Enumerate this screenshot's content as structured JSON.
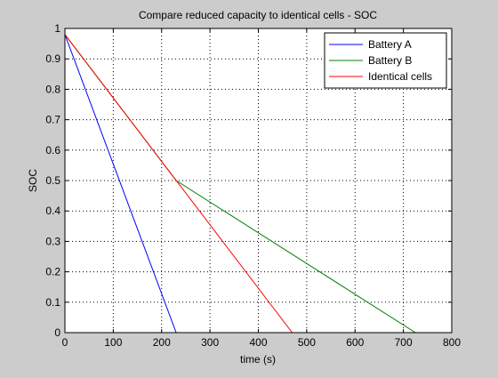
{
  "chart_data": {
    "type": "line",
    "title": "Compare reduced capacity to identical cells - SOC",
    "xlabel": "time (s)",
    "ylabel": "SOC",
    "xlim": [
      0,
      800
    ],
    "ylim": [
      0,
      1
    ],
    "x_ticks": [
      0,
      100,
      200,
      300,
      400,
      500,
      600,
      700,
      800
    ],
    "y_ticks": [
      0,
      0.1,
      0.2,
      0.3,
      0.4,
      0.5,
      0.6,
      0.7,
      0.8,
      0.9,
      1
    ],
    "x_tick_labels": [
      "0",
      "100",
      "200",
      "300",
      "400",
      "500",
      "600",
      "700",
      "800"
    ],
    "y_tick_labels": [
      "0",
      "0.1",
      "0.2",
      "0.3",
      "0.4",
      "0.5",
      "0.6",
      "0.7",
      "0.8",
      "0.9",
      "1"
    ],
    "grid": true,
    "legend_position": "top-right",
    "series": [
      {
        "name": "Battery A",
        "color": "#0000ff",
        "points": [
          [
            0,
            0.98
          ],
          [
            230,
            0
          ],
          [
            800,
            0
          ]
        ]
      },
      {
        "name": "Battery B",
        "color": "#008000",
        "points": [
          [
            0,
            0.98
          ],
          [
            230,
            0.5
          ],
          [
            725,
            0
          ],
          [
            800,
            0
          ]
        ]
      },
      {
        "name": "Identical cells",
        "color": "#ff0000",
        "points": [
          [
            0,
            0.98
          ],
          [
            470,
            0
          ],
          [
            800,
            0
          ]
        ]
      }
    ]
  }
}
